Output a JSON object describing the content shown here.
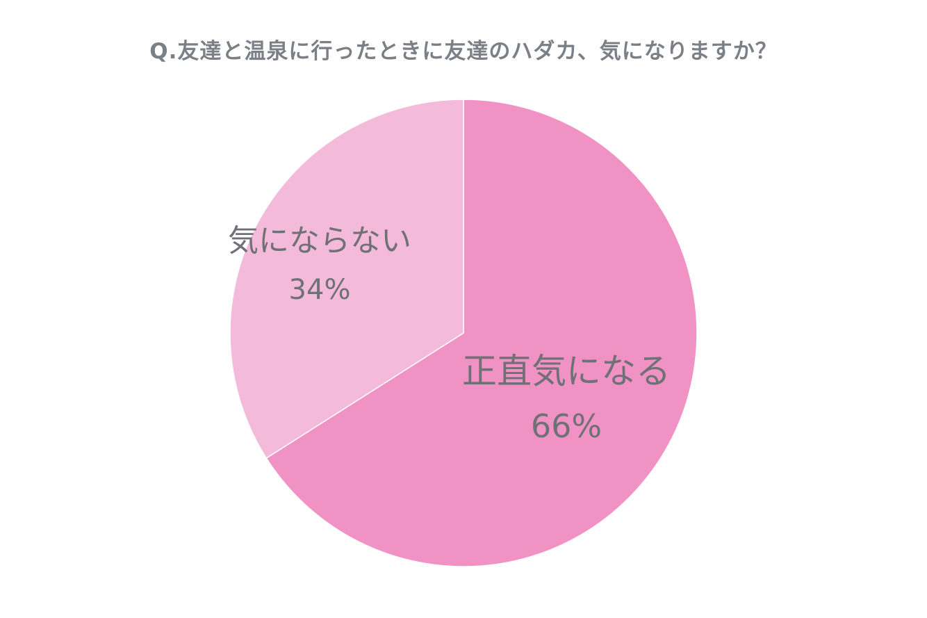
{
  "chart_data": {
    "type": "pie",
    "title": "Q.友達と温泉に行ったときに友達のハダカ、気になりますか？",
    "slices": [
      {
        "label": "正直気になる",
        "value": 66,
        "value_label": "66%",
        "color": "#f092c4"
      },
      {
        "label": "気にならない",
        "value": 34,
        "value_label": "34%",
        "color": "#f4bad9"
      }
    ],
    "start_angle": "12 o'clock",
    "direction": "clockwise",
    "legend": "none",
    "data_labels": "inside slices"
  }
}
